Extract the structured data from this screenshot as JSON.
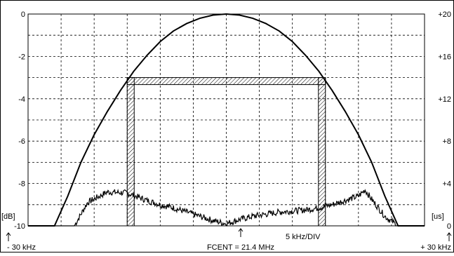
{
  "chart_data": {
    "type": "line",
    "title": "",
    "x_unit_label": "5 kHz/DIV",
    "x_center_label": "FCENT = 21.4 MHz",
    "x_left_label": "- 30 kHz",
    "x_right_label": "+ 30 kHz",
    "xlim_khz": [
      -30,
      30
    ],
    "ylim_db": [
      -10,
      0
    ],
    "ylim_us": [
      0,
      20
    ],
    "y_left_unit": "[dB]",
    "y_right_unit": "[us]",
    "y_left_ticks": [
      "0",
      "-2",
      "-4",
      "-6",
      "-8",
      "-10"
    ],
    "y_right_ticks": [
      "+20",
      "+16",
      "+12",
      "+8",
      "+4",
      "0"
    ],
    "grid": true,
    "series": [
      {
        "axis": "left",
        "style": "curve",
        "x_khz": [
          -30,
          -26,
          -24,
          -22,
          -20,
          -18,
          -16,
          -14,
          -12,
          -10,
          -8,
          -6,
          -4,
          -2,
          0,
          2,
          4,
          6,
          8,
          10,
          12,
          14,
          16,
          18,
          20,
          22,
          24,
          26,
          30
        ],
        "y_db": [
          -10,
          -10,
          -8.6,
          -7.0,
          -5.7,
          -4.6,
          -3.6,
          -2.7,
          -1.95,
          -1.3,
          -0.8,
          -0.45,
          -0.2,
          -0.05,
          0,
          -0.05,
          -0.2,
          -0.45,
          -0.8,
          -1.3,
          -1.95,
          -2.7,
          -3.6,
          -4.6,
          -5.7,
          -7.0,
          -8.6,
          -10,
          -10
        ]
      },
      {
        "axis": "right",
        "style": "noisy",
        "x_khz": [
          -30,
          -26,
          -23,
          -21,
          -18,
          -15,
          -12,
          -10,
          -8,
          -6,
          -4,
          -2,
          0,
          2,
          4,
          6,
          8,
          10,
          12,
          14,
          16,
          18,
          20,
          21,
          22,
          24,
          26,
          30
        ],
        "y_us": [
          0,
          0,
          0,
          2.2,
          3.2,
          3.1,
          2.4,
          2.0,
          1.7,
          1.3,
          0.9,
          0.5,
          0.2,
          0.6,
          0.9,
          1.1,
          1.3,
          1.4,
          1.5,
          1.7,
          2.0,
          2.4,
          2.8,
          3.4,
          2.5,
          0.9,
          0,
          0
        ]
      },
      {
        "axis": "right",
        "style": "hatched-window",
        "x_khz": [
          -15,
          -15,
          15,
          15
        ],
        "y_us": [
          0,
          14,
          14,
          0
        ]
      }
    ]
  }
}
